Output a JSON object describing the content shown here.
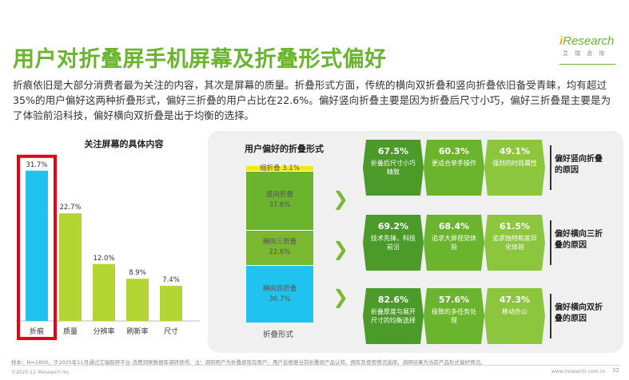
{
  "header": {
    "title": "用户对折叠屏手机屏幕及折叠形式偏好",
    "logo_text": "Research",
    "logo_i": "i",
    "logo_sub": "艾瑞咨询"
  },
  "intro": "折痕依旧是大部分消费者最为关注的内容，其次是屏幕的质量。折叠形式方面，传统的横向双折叠和竖向折叠依旧备受青睐，均有超过35%的用户偏好这两种折叠形式，偏好三折叠的用户占比在22.6%。偏好竖向折叠主要是因为折叠后尺寸小巧，偏好三折叠是主要是为了体验前沿科技，偏好横向双折叠是出于均衡的选择。",
  "colors": {
    "green": "#6ab42e",
    "blue": "#1fc3ee",
    "lime": "#b3d635",
    "highlight": "#e60012",
    "yellow": "#f7e51b",
    "dark_green": "#3d8b2a"
  },
  "chart_data": [
    {
      "type": "bar",
      "title": "关注屏幕的具体内容",
      "categories": [
        "折痕",
        "质量",
        "分辨率",
        "刷新率",
        "尺寸"
      ],
      "values": [
        31.7,
        22.7,
        12.0,
        8.9,
        7.4
      ],
      "value_labels": [
        "31.7%",
        "22.7%",
        "12.0%",
        "8.9%",
        "7.4%"
      ],
      "highlight_index": 0,
      "ylim": [
        0,
        32
      ]
    },
    {
      "type": "bar",
      "title": "用户偏好的折叠形式",
      "categories": [
        "折叠形式"
      ],
      "stacked": true,
      "series": [
        {
          "name": "横向双折叠",
          "value": 36.7,
          "label": "36.7%"
        },
        {
          "name": "横向三折叠",
          "value": 22.6,
          "label": "22.6%"
        },
        {
          "name": "竖向折叠",
          "value": 37.6,
          "label": "37.6%"
        },
        {
          "name": "缩折叠",
          "value": 3.1,
          "label": "3.1%"
        }
      ]
    }
  ],
  "reasons": [
    {
      "label": "偏好竖向折叠的原因",
      "items": [
        {
          "pct": "67.5%",
          "text": "折叠后尺寸小巧精致"
        },
        {
          "pct": "60.3%",
          "text": "更适合单手操作"
        },
        {
          "pct": "49.1%",
          "text": "强烈的时尚属性"
        }
      ]
    },
    {
      "label": "偏好横向三折叠的原因",
      "items": [
        {
          "pct": "69.2%",
          "text": "技术先锋，科技前沿"
        },
        {
          "pct": "68.4%",
          "text": "追求大屏视觉体验"
        },
        {
          "pct": "61.5%",
          "text": "追求独特和差异化体验"
        }
      ]
    },
    {
      "label": "偏好横向双折叠的原因",
      "items": [
        {
          "pct": "82.6%",
          "text": "折叠厚度与展开尺寸的均衡选择"
        },
        {
          "pct": "57.6%",
          "text": "极致的多任务处理"
        },
        {
          "pct": "47.3%",
          "text": "移动办公"
        }
      ]
    }
  ],
  "footer": {
    "note": "样本：N=1800，于2025年11月通过艾瑞智研平台-消费洞察数据库调研获得。注：调研用户为折叠屏现有用户，用户会根据当前折叠屏产品认知、拥有及使用情况选择，调研结果为当前产品形式偏好情况。",
    "copyright": "©2025.12 iResearch Inc.",
    "website": "www.iresearch.com.cn",
    "page": "32"
  }
}
